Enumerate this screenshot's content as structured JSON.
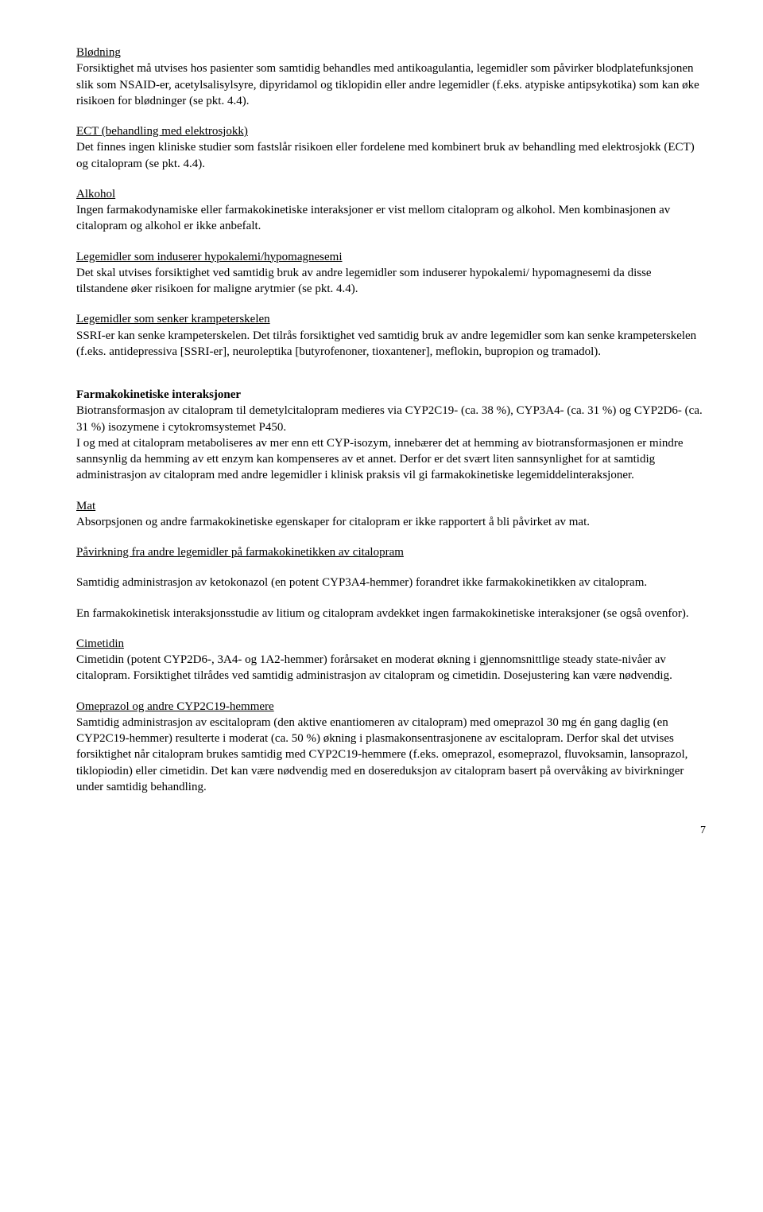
{
  "sections": [
    {
      "heading": "Blødning",
      "heading_style": "underline",
      "para": "Forsiktighet må utvises hos pasienter som samtidig behandles med antikoagulantia, legemidler som påvirker blodplatefunksjonen slik som NSAID-er, acetylsalisylsyre, dipyridamol og tiklopidin eller andre legemidler (f.eks. atypiske antipsykotika) som kan øke risikoen for blødninger (se pkt. 4.4)."
    },
    {
      "heading": "ECT (behandling med elektrosjokk)",
      "heading_style": "underline",
      "para": "Det finnes ingen kliniske studier som fastslår risikoen eller fordelene med kombinert bruk av behandling med elektrosjokk (ECT) og citalopram (se pkt. 4.4)."
    },
    {
      "heading": "Alkohol",
      "heading_style": "underline",
      "para": "Ingen farmakodynamiske eller farmakokinetiske interaksjoner er vist mellom citalopram og alkohol. Men kombinasjonen av citalopram og alkohol er ikke anbefalt."
    },
    {
      "heading": "Legemidler som induserer hypokalemi/hypomagnesemi",
      "heading_style": "underline",
      "para": "Det skal utvises forsiktighet ved samtidig bruk av andre legemidler som induserer hypokalemi/ hypomagnesemi da disse tilstandene øker risikoen for maligne arytmier (se pkt. 4.4)."
    },
    {
      "heading": "Legemidler som senker krampeterskelen",
      "heading_style": "underline",
      "para": "SSRI-er kan senke krampeterskelen. Det tilrås forsiktighet ved samtidig bruk av andre legemidler som kan senke krampeterskelen (f.eks. antidepressiva [SSRI-er], neuroleptika [butyrofenoner, tioxantener], meflokin, bupropion og tramadol)."
    },
    {
      "heading": "Farmakokinetiske interaksjoner",
      "heading_style": "bold",
      "pre_gap": true,
      "para": "Biotransformasjon av citalopram til demetylcitalopram medieres via CYP2C19- (ca. 38 %), CYP3A4- (ca. 31 %) og CYP2D6- (ca. 31 %) isozymene i cytokromsystemet P450.\nI og med at citalopram metaboliseres av mer enn ett CYP-isozym, innebærer det at hemming av biotransformasjonen er mindre sannsynlig da hemming av ett enzym kan kompenseres av et annet. Derfor er det svært liten sannsynlighet for at samtidig administrasjon av citalopram med andre legemidler i klinisk praksis vil gi farmakokinetiske legemiddelinteraksjoner."
    },
    {
      "heading": "Mat",
      "heading_style": "underline",
      "para": "Absorpsjonen og andre farmakokinetiske egenskaper for citalopram er ikke rapportert å bli påvirket av mat."
    },
    {
      "heading": "Påvirkning fra andre legemidler på farmakokinetikken av citalopram",
      "heading_style": "underline",
      "para": ""
    },
    {
      "heading": "",
      "heading_style": "",
      "para": "Samtidig administrasjon av ketokonazol (en potent CYP3A4-hemmer) forandret ikke farmakokinetikken av citalopram."
    },
    {
      "heading": "",
      "heading_style": "",
      "para": "En farmakokinetisk interaksjonsstudie av litium og citalopram avdekket ingen farmakokinetiske interaksjoner (se også ovenfor)."
    },
    {
      "heading": "Cimetidin",
      "heading_style": "underline",
      "para": "Cimetidin (potent CYP2D6-, 3A4- og 1A2-hemmer) forårsaket en moderat økning i gjennomsnittlige steady state-nivåer av citalopram. Forsiktighet tilrådes ved samtidig administrasjon av citalopram og cimetidin. Dosejustering kan være nødvendig."
    },
    {
      "heading": "Omeprazol og andre CYP2C19-hemmere",
      "heading_style": "underline",
      "para": "Samtidig administrasjon av escitalopram (den aktive enantiomeren av citalopram) med omeprazol 30 mg én gang daglig (en CYP2C19-hemmer) resulterte i moderat (ca. 50 %) økning i plasmakonsentrasjonene av escitalopram. Derfor skal det utvises forsiktighet når citalopram brukes samtidig med CYP2C19-hemmere (f.eks. omeprazol, esomeprazol, fluvoksamin, lansoprazol, tiklopiodin) eller cimetidin. Det kan være nødvendig med en dosereduksjon av citalopram basert på overvåking av bivirkninger under samtidig behandling."
    }
  ],
  "page_number": "7"
}
